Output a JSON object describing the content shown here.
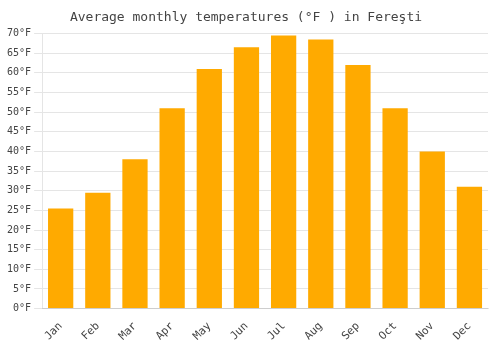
{
  "chart_data": {
    "type": "bar",
    "title": "Average monthly temperatures (°F ) in Fereşti",
    "categories": [
      "Jan",
      "Feb",
      "Mar",
      "Apr",
      "May",
      "Jun",
      "Jul",
      "Aug",
      "Sep",
      "Oct",
      "Nov",
      "Dec"
    ],
    "values": [
      25.5,
      29.5,
      38,
      51,
      61,
      66.5,
      69.5,
      68.5,
      62,
      51,
      40,
      31
    ],
    "color": "#FFAA00",
    "ylim": [
      0,
      70
    ],
    "yticks": [
      {
        "value": 0,
        "label": "0°F"
      },
      {
        "value": 5,
        "label": "5°F"
      },
      {
        "value": 10,
        "label": "10°F"
      },
      {
        "value": 15,
        "label": "15°F"
      },
      {
        "value": 20,
        "label": "20°F"
      },
      {
        "value": 25,
        "label": "25°F"
      },
      {
        "value": 30,
        "label": "30°F"
      },
      {
        "value": 35,
        "label": "35°F"
      },
      {
        "value": 40,
        "label": "40°F"
      },
      {
        "value": 45,
        "label": "45°F"
      },
      {
        "value": 50,
        "label": "50°F"
      },
      {
        "value": 55,
        "label": "55°F"
      },
      {
        "value": 60,
        "label": "60°F"
      },
      {
        "value": 65,
        "label": "65°F"
      },
      {
        "value": 70,
        "label": "70°F"
      }
    ],
    "grid": true
  }
}
